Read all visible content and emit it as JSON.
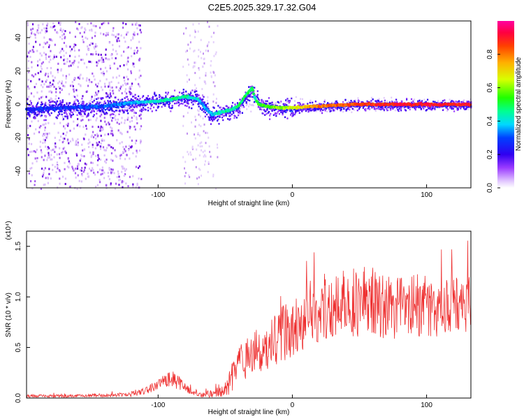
{
  "title": "C2E5.2025.329.17.32.G04",
  "chart_data": [
    {
      "type": "heatmap",
      "xlabel": "Height of straight line (km)",
      "ylabel": "Frequency (Hz)",
      "xlim": [
        -198,
        133
      ],
      "ylim": [
        -50,
        50
      ],
      "xticks": [
        -100,
        0,
        100
      ],
      "xtick_labels": [
        "-100",
        "0",
        "100"
      ],
      "yticks": [
        40,
        20,
        0,
        -20,
        -40
      ],
      "ytick_labels": [
        "40",
        "20",
        "0",
        "-20",
        "-40"
      ],
      "colorbar": {
        "label": "Normalized spectral amplitude",
        "range": [
          0.0,
          1.0
        ],
        "ticks": [
          0.0,
          0.2,
          0.4,
          0.6,
          0.8
        ],
        "tick_labels": [
          "0.0",
          "0.2",
          "0.4",
          "0.6",
          "0.8"
        ]
      },
      "trace": {
        "x": [
          -198,
          -170,
          -140,
          -120,
          -100,
          -90,
          -80,
          -70,
          -65,
          -60,
          -55,
          -50,
          -45,
          -40,
          -35,
          -30,
          -28,
          -25,
          -20,
          -10,
          0,
          20,
          50,
          80,
          100,
          133
        ],
        "freq": [
          -3,
          -2,
          -1,
          1,
          2,
          3,
          5,
          3,
          -2,
          -6,
          -5,
          -4,
          -3,
          -1,
          5,
          10,
          4,
          0,
          -1,
          -2,
          -2,
          -1,
          0,
          0,
          0,
          0
        ],
        "amplitude": [
          0.25,
          0.28,
          0.3,
          0.35,
          0.42,
          0.45,
          0.45,
          0.4,
          0.35,
          0.38,
          0.42,
          0.45,
          0.45,
          0.48,
          0.5,
          0.5,
          0.45,
          0.55,
          0.55,
          0.6,
          0.65,
          0.8,
          0.85,
          0.9,
          0.9,
          0.9
        ]
      }
    },
    {
      "type": "line",
      "xlabel": "Height of straight line (km)",
      "ylabel": "SNR (10 * v/v)",
      "yscale_label": "(x10⁴)",
      "xlim": [
        -198,
        133
      ],
      "ylim": [
        0,
        1.65
      ],
      "xticks": [
        -100,
        0,
        100
      ],
      "xtick_labels": [
        "-100",
        "0",
        "100"
      ],
      "yticks": [
        0.0,
        0.5,
        1.0,
        1.5
      ],
      "ytick_labels": [
        "0.0",
        "0.5",
        "1.0",
        "1.5"
      ],
      "color": "#ee3030",
      "envelope": {
        "x": [
          -198,
          -160,
          -130,
          -120,
          -110,
          -100,
          -95,
          -90,
          -85,
          -80,
          -75,
          -70,
          -60,
          -50,
          -45,
          -40,
          -35,
          -30,
          -20,
          -10,
          0,
          10,
          20,
          30,
          40,
          50,
          60,
          70,
          80,
          90,
          100,
          110,
          120,
          133
        ],
        "mean": [
          0.02,
          0.02,
          0.03,
          0.04,
          0.07,
          0.12,
          0.16,
          0.18,
          0.16,
          0.12,
          0.06,
          0.03,
          0.04,
          0.1,
          0.2,
          0.32,
          0.38,
          0.42,
          0.5,
          0.62,
          0.7,
          0.8,
          0.85,
          0.9,
          0.95,
          0.95,
          0.95,
          0.92,
          0.9,
          0.92,
          0.92,
          0.9,
          0.92,
          0.93
        ],
        "spread": [
          0.015,
          0.015,
          0.02,
          0.03,
          0.04,
          0.06,
          0.08,
          0.1,
          0.08,
          0.06,
          0.03,
          0.02,
          0.04,
          0.1,
          0.15,
          0.18,
          0.2,
          0.22,
          0.25,
          0.28,
          0.3,
          0.3,
          0.3,
          0.32,
          0.33,
          0.35,
          0.35,
          0.33,
          0.32,
          0.32,
          0.32,
          0.3,
          0.3,
          0.3
        ]
      }
    }
  ]
}
